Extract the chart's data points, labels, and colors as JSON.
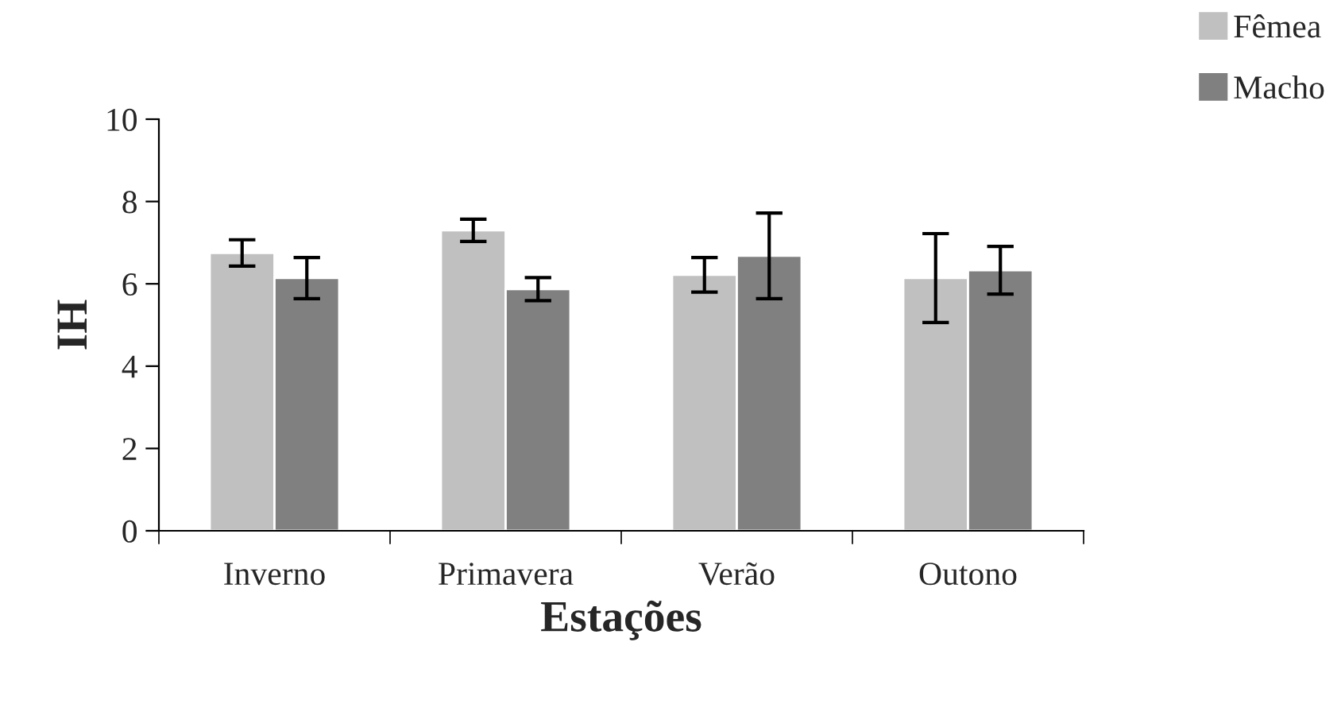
{
  "chart_data": {
    "type": "bar",
    "xlabel": "Estações",
    "ylabel": "IH",
    "categories": [
      "Inverno",
      "Primavera",
      "Verão",
      "Outono"
    ],
    "series": [
      {
        "name": "Fêmea",
        "color": "#c0c0c0",
        "values": [
          6.75,
          7.3,
          6.22,
          6.14
        ],
        "errors": [
          0.32,
          0.27,
          0.42,
          1.08
        ]
      },
      {
        "name": "Macho",
        "color": "#808080",
        "values": [
          6.14,
          5.87,
          6.68,
          6.33
        ],
        "errors": [
          0.5,
          0.28,
          1.04,
          0.58
        ]
      }
    ],
    "ylim": [
      0,
      10
    ],
    "yticks": [
      0,
      2,
      4,
      6,
      8,
      10
    ],
    "grid": false,
    "legend": "top right"
  }
}
